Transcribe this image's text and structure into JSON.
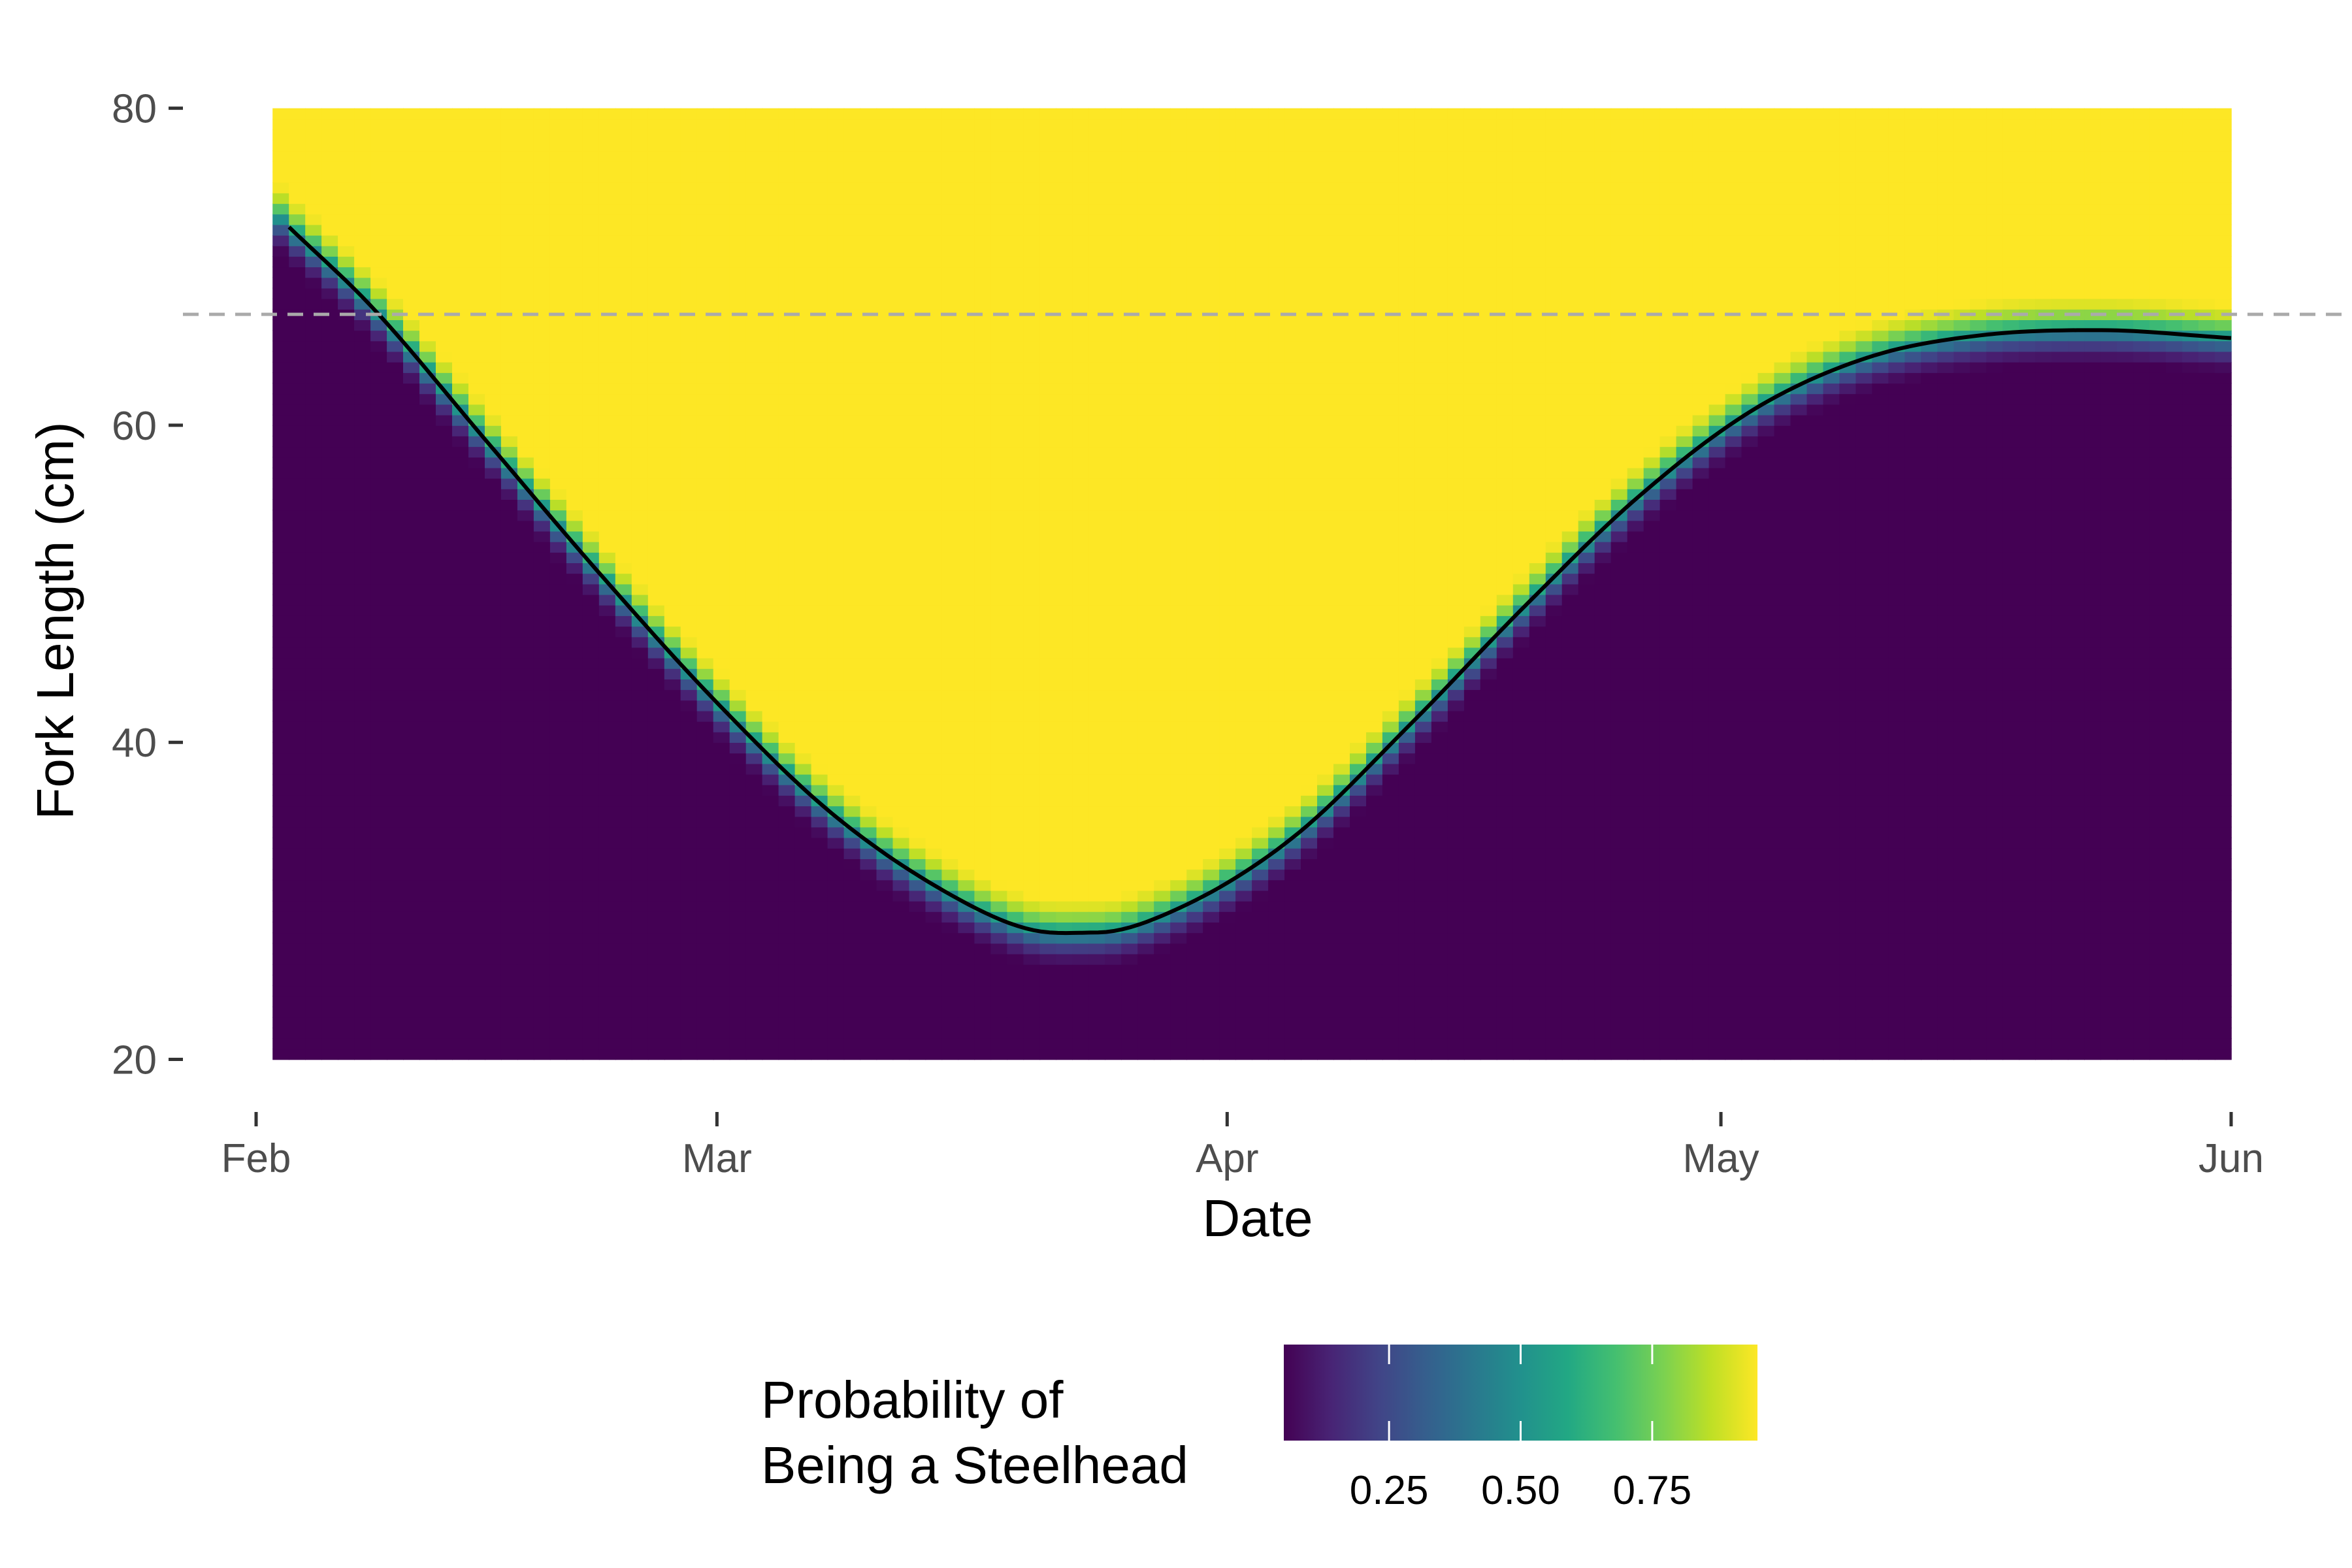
{
  "chart_data": {
    "type": "heatmap",
    "xlabel": "Date",
    "ylabel": "Fork Length (cm)",
    "x_ticks": [
      {
        "date": "2023-02-01",
        "label": "Feb"
      },
      {
        "date": "2023-03-01",
        "label": "Mar"
      },
      {
        "date": "2023-04-01",
        "label": "Apr"
      },
      {
        "date": "2023-05-01",
        "label": "May"
      },
      {
        "date": "2023-06-01",
        "label": "Jun"
      }
    ],
    "y_ticks": [
      20,
      40,
      60,
      80
    ],
    "xlim": [
      "2023-02-01",
      "2023-06-01"
    ],
    "ylim": [
      18,
      82.5
    ],
    "fill_range": {
      "x": [
        "2023-02-02",
        "2023-06-01"
      ],
      "y": [
        20,
        80
      ]
    },
    "grid": false,
    "threshold_line": {
      "y": 67,
      "style": "dashed",
      "color": "#aaaaaa"
    },
    "boundary_curve": {
      "color": "#000000",
      "points": [
        {
          "date": "2023-02-03",
          "y": 72.5
        },
        {
          "date": "2023-02-08",
          "y": 67.5
        },
        {
          "date": "2023-02-15",
          "y": 59.0
        },
        {
          "date": "2023-02-22",
          "y": 50.5
        },
        {
          "date": "2023-03-01",
          "y": 42.5
        },
        {
          "date": "2023-03-08",
          "y": 35.5
        },
        {
          "date": "2023-03-15",
          "y": 30.5
        },
        {
          "date": "2023-03-20",
          "y": 28.2
        },
        {
          "date": "2023-03-24",
          "y": 28.0
        },
        {
          "date": "2023-03-29",
          "y": 29.5
        },
        {
          "date": "2023-04-05",
          "y": 34.0
        },
        {
          "date": "2023-04-12",
          "y": 41.0
        },
        {
          "date": "2023-04-19",
          "y": 48.5
        },
        {
          "date": "2023-04-26",
          "y": 55.5
        },
        {
          "date": "2023-05-03",
          "y": 61.0
        },
        {
          "date": "2023-05-10",
          "y": 64.3
        },
        {
          "date": "2023-05-17",
          "y": 65.7
        },
        {
          "date": "2023-05-24",
          "y": 66.0
        },
        {
          "date": "2023-06-01",
          "y": 65.5
        }
      ]
    },
    "legend": {
      "title_lines": [
        "Probability of",
        "Being a Steelhead"
      ],
      "ticks": [
        0.25,
        0.5,
        0.75
      ],
      "tick_labels": [
        "0.25",
        "0.50",
        "0.75"
      ],
      "range": [
        0.05,
        0.95
      ],
      "placement": "bottom"
    },
    "colormap": "viridis",
    "colors": {
      "low": "#440154",
      "high": "#fde725"
    }
  }
}
